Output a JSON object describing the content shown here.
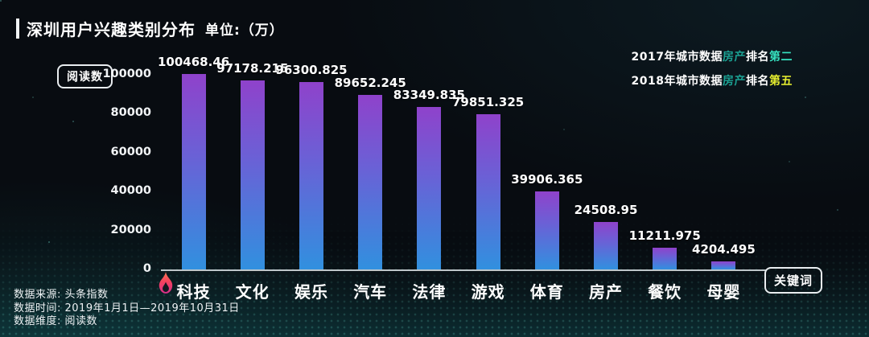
{
  "header": {
    "title": "深圳用户兴趣类别分布",
    "unit": "单位:（万）",
    "annotations": [
      {
        "parts": [
          {
            "text": "2017年城市数据",
            "color": "#ffffff"
          },
          {
            "text": "房产",
            "color": "#1ba193"
          },
          {
            "text": "排名",
            "color": "#ffffff"
          },
          {
            "text": "第二",
            "color": "#36e2c0"
          }
        ]
      },
      {
        "parts": [
          {
            "text": "2018年城市数据",
            "color": "#ffffff"
          },
          {
            "text": "房产",
            "color": "#1ba193"
          },
          {
            "text": "排名",
            "color": "#ffffff"
          },
          {
            "text": "第五",
            "color": "#e6ee2f"
          }
        ]
      }
    ]
  },
  "chart_data": {
    "type": "bar",
    "title": "深圳用户兴趣类别分布",
    "unit": "万",
    "ylabel": "阅读数",
    "x_axis_tag": "关键词",
    "categories": [
      "科技",
      "文化",
      "娱乐",
      "汽车",
      "法律",
      "游戏",
      "体育",
      "房产",
      "餐饮",
      "母婴"
    ],
    "values": [
      100468.46,
      97178.215,
      96300.825,
      89652.245,
      83349.835,
      79851.325,
      39906.365,
      24508.95,
      11211.975,
      4204.495
    ],
    "value_labels": [
      "100468.46",
      "97178.215",
      "96300.825",
      "89652.245",
      "83349.835",
      "79851.325",
      "39906.365",
      "24508.95",
      "11211.975",
      "4204.495"
    ],
    "ylim": [
      0,
      100000
    ],
    "yticks": [
      {
        "value": 0,
        "label": "0"
      },
      {
        "value": 20000,
        "label": "20000"
      },
      {
        "value": 40000,
        "label": "40000"
      },
      {
        "value": 60000,
        "label": "60000"
      },
      {
        "value": 80000,
        "label": "80000"
      },
      {
        "value": 100000,
        "label": "100000"
      }
    ],
    "grid": false,
    "legend": "none",
    "hot_category_index": 0,
    "bar_gradient_top": "#8f42cb",
    "bar_gradient_mid": "#6a61d6",
    "bar_gradient_bottom": "#3190df"
  },
  "footer": {
    "lines": [
      "数据来源: 头条指数",
      "数据时间: 2019年1月1日—2019年10月31日",
      "数据维度: 阅读数"
    ]
  },
  "colors": {
    "background": "#080c11",
    "text": "#ffffff",
    "axis_line": "#dee5e9",
    "highlight_teal": "#36e2c0",
    "highlight_yellow": "#e6ee2f",
    "flame_red": "#f4425e"
  }
}
